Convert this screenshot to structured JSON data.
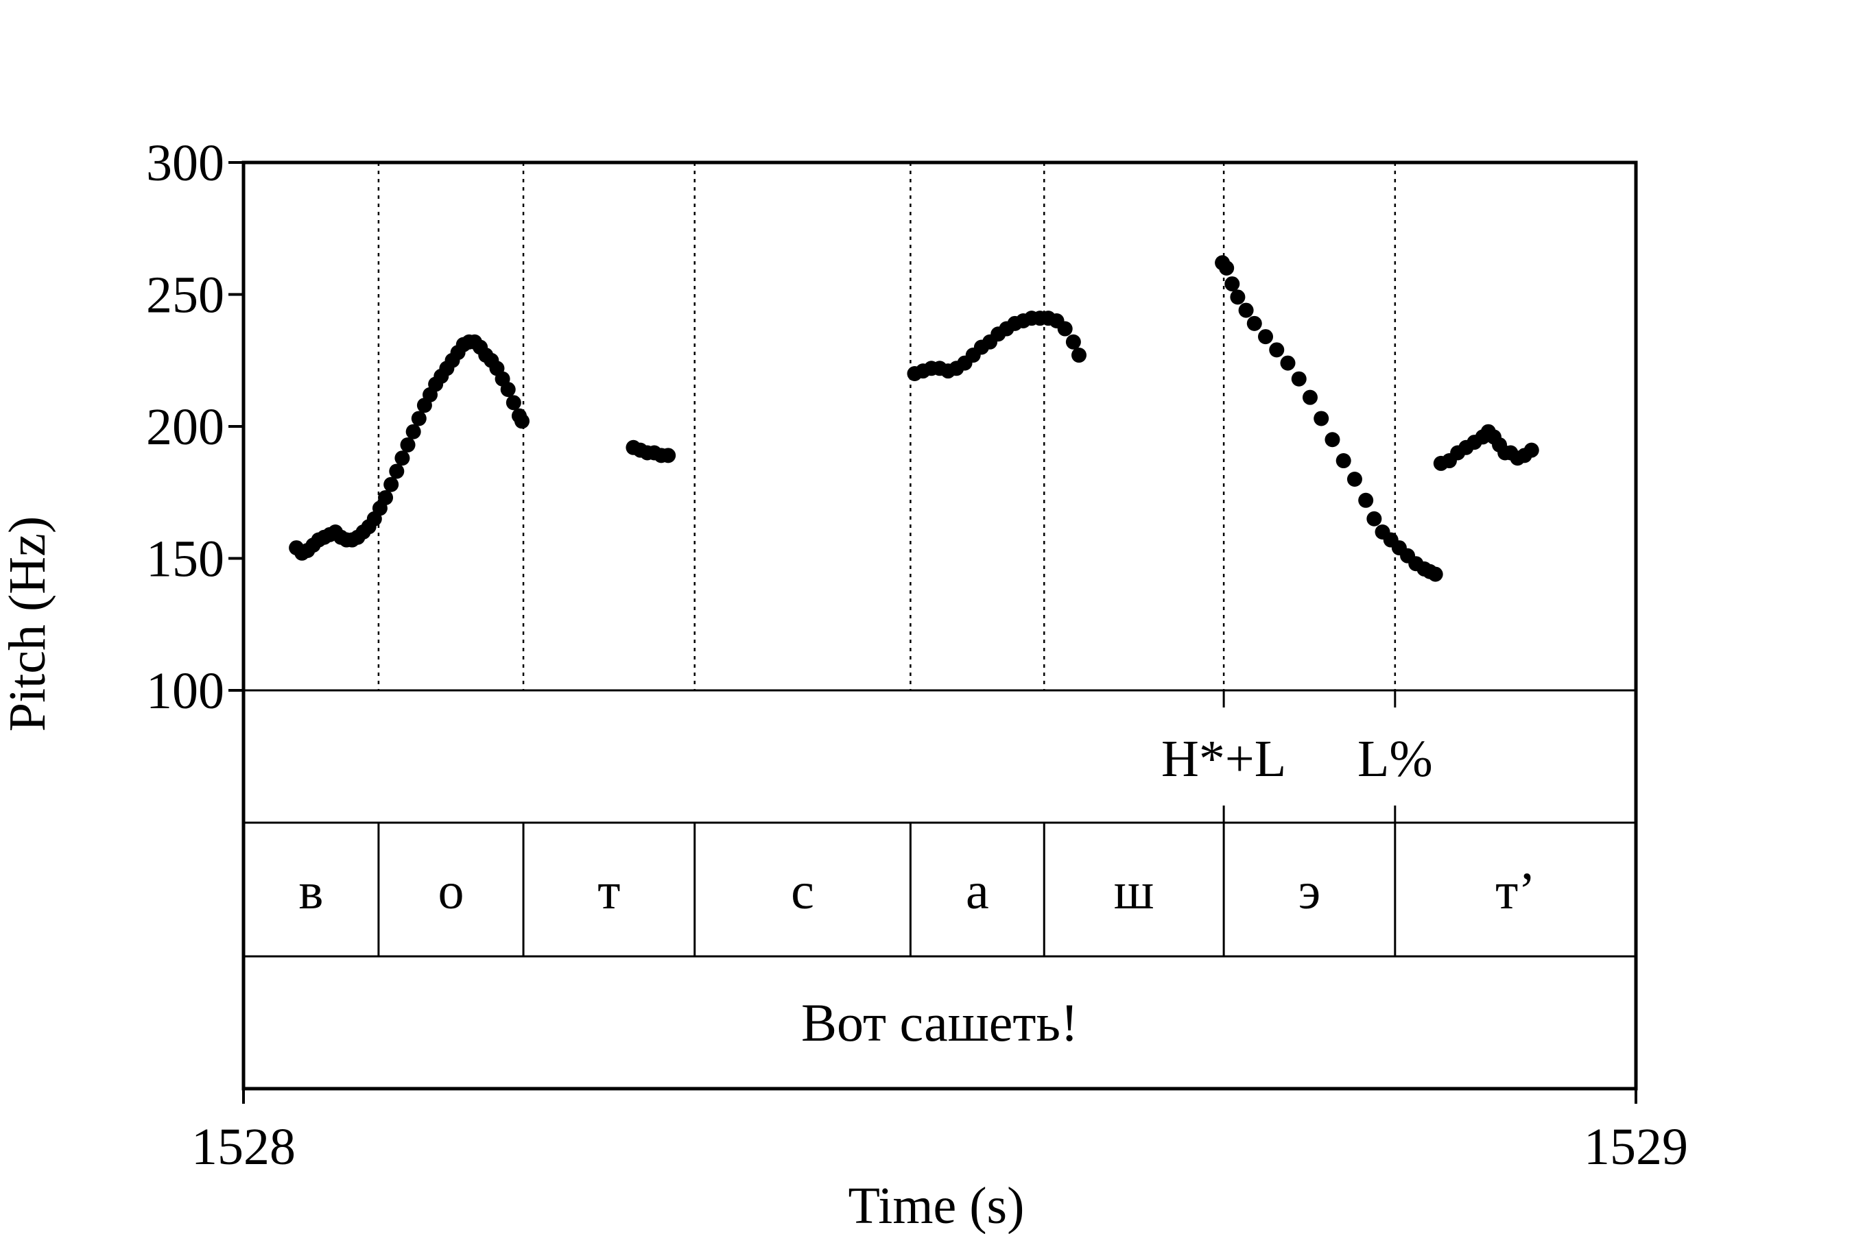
{
  "chart_data": {
    "type": "scatter",
    "xlabel": "Time (s)",
    "ylabel": "Pitch (Hz)",
    "xlim": [
      1528,
      1529
    ],
    "ylim": [
      100,
      300
    ],
    "x_ticks": [
      "1528",
      "1529"
    ],
    "y_ticks": [
      "100",
      "150",
      "200",
      "250",
      "300"
    ],
    "series": [
      {
        "points": [
          [
            1528.038,
            154
          ],
          [
            1528.042,
            152
          ],
          [
            1528.046,
            153
          ],
          [
            1528.05,
            155
          ],
          [
            1528.054,
            157
          ],
          [
            1528.058,
            158
          ],
          [
            1528.062,
            159
          ],
          [
            1528.066,
            160
          ],
          [
            1528.07,
            158
          ],
          [
            1528.074,
            157
          ],
          [
            1528.078,
            157
          ],
          [
            1528.082,
            158
          ],
          [
            1528.086,
            160
          ],
          [
            1528.09,
            162
          ],
          [
            1528.094,
            165
          ],
          [
            1528.098,
            169
          ],
          [
            1528.102,
            173
          ],
          [
            1528.106,
            178
          ],
          [
            1528.11,
            183
          ],
          [
            1528.114,
            188
          ],
          [
            1528.118,
            193
          ],
          [
            1528.122,
            198
          ],
          [
            1528.126,
            203
          ],
          [
            1528.13,
            208
          ],
          [
            1528.134,
            212
          ],
          [
            1528.138,
            216
          ],
          [
            1528.142,
            219
          ],
          [
            1528.146,
            222
          ],
          [
            1528.15,
            225
          ],
          [
            1528.154,
            228
          ],
          [
            1528.158,
            231
          ],
          [
            1528.162,
            232
          ],
          [
            1528.166,
            232
          ],
          [
            1528.17,
            230
          ],
          [
            1528.174,
            227
          ],
          [
            1528.178,
            225
          ],
          [
            1528.182,
            222
          ],
          [
            1528.186,
            218
          ],
          [
            1528.19,
            214
          ],
          [
            1528.194,
            209
          ],
          [
            1528.198,
            204
          ],
          [
            1528.2,
            202
          ]
        ]
      },
      {
        "points": [
          [
            1528.28,
            192
          ],
          [
            1528.285,
            191
          ],
          [
            1528.29,
            190
          ],
          [
            1528.295,
            190
          ],
          [
            1528.3,
            189
          ],
          [
            1528.305,
            189
          ]
        ]
      },
      {
        "points": [
          [
            1528.482,
            220
          ],
          [
            1528.488,
            221
          ],
          [
            1528.494,
            222
          ],
          [
            1528.5,
            222
          ],
          [
            1528.506,
            221
          ],
          [
            1528.512,
            222
          ],
          [
            1528.518,
            224
          ],
          [
            1528.524,
            227
          ],
          [
            1528.53,
            230
          ],
          [
            1528.536,
            232
          ],
          [
            1528.542,
            235
          ],
          [
            1528.548,
            237
          ],
          [
            1528.554,
            239
          ],
          [
            1528.56,
            240
          ],
          [
            1528.566,
            241
          ],
          [
            1528.572,
            241
          ],
          [
            1528.578,
            241
          ],
          [
            1528.584,
            240
          ],
          [
            1528.59,
            237
          ],
          [
            1528.596,
            232
          ],
          [
            1528.6,
            227
          ]
        ]
      },
      {
        "points": [
          [
            1528.703,
            262
          ],
          [
            1528.706,
            260
          ],
          [
            1528.71,
            254
          ],
          [
            1528.714,
            249
          ],
          [
            1528.72,
            244
          ],
          [
            1528.726,
            239
          ],
          [
            1528.734,
            234
          ],
          [
            1528.742,
            229
          ],
          [
            1528.75,
            224
          ],
          [
            1528.758,
            218
          ],
          [
            1528.766,
            211
          ],
          [
            1528.774,
            203
          ],
          [
            1528.782,
            195
          ],
          [
            1528.79,
            187
          ],
          [
            1528.798,
            180
          ],
          [
            1528.806,
            172
          ],
          [
            1528.812,
            165
          ],
          [
            1528.818,
            160
          ],
          [
            1528.824,
            157
          ],
          [
            1528.83,
            154
          ],
          [
            1528.836,
            151
          ],
          [
            1528.842,
            148
          ],
          [
            1528.848,
            146
          ],
          [
            1528.852,
            145
          ],
          [
            1528.856,
            144
          ]
        ]
      },
      {
        "points": [
          [
            1528.86,
            186
          ],
          [
            1528.866,
            187
          ],
          [
            1528.872,
            190
          ],
          [
            1528.878,
            192
          ],
          [
            1528.884,
            194
          ],
          [
            1528.89,
            196
          ],
          [
            1528.894,
            198
          ],
          [
            1528.898,
            196
          ],
          [
            1528.902,
            193
          ],
          [
            1528.906,
            190
          ],
          [
            1528.91,
            190
          ],
          [
            1528.915,
            188
          ],
          [
            1528.92,
            189
          ],
          [
            1528.925,
            191
          ]
        ]
      }
    ],
    "vertical_boundaries": [
      1528.097,
      1528.201,
      1528.324,
      1528.479,
      1528.575,
      1528.704,
      1528.827
    ],
    "tones": [
      {
        "label": "H*+L",
        "time": 1528.704
      },
      {
        "label": "L%",
        "time": 1528.827
      }
    ],
    "segments": [
      {
        "label": "в",
        "start": 1528.0,
        "end": 1528.097
      },
      {
        "label": "о",
        "start": 1528.097,
        "end": 1528.201
      },
      {
        "label": "т",
        "start": 1528.201,
        "end": 1528.324
      },
      {
        "label": "с",
        "start": 1528.324,
        "end": 1528.479
      },
      {
        "label": "а",
        "start": 1528.479,
        "end": 1528.575
      },
      {
        "label": "ш",
        "start": 1528.575,
        "end": 1528.704
      },
      {
        "label": "э",
        "start": 1528.704,
        "end": 1528.827
      },
      {
        "label": "т’",
        "start": 1528.827,
        "end": 1529.0
      }
    ],
    "sentence": "Вот сашеть!"
  }
}
